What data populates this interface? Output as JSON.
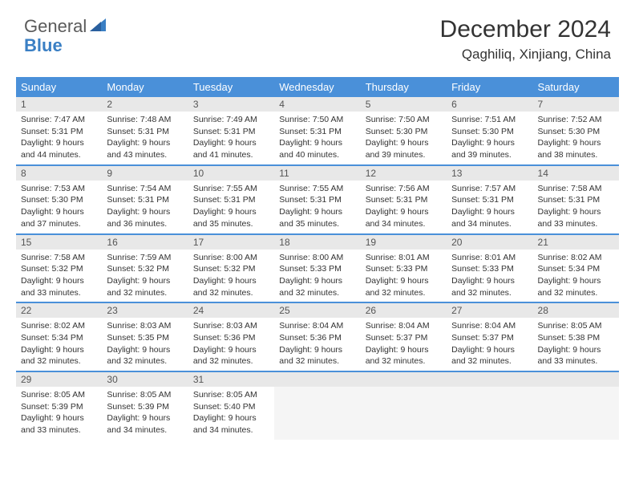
{
  "brand": {
    "word1": "General",
    "word2": "Blue"
  },
  "title": {
    "month_year": "December 2024",
    "location": "Qaghiliq, Xinjiang, China"
  },
  "colors": {
    "header_bg": "#4a90d9",
    "header_text": "#ffffff",
    "daynum_bg": "#e8e8e8",
    "row_border": "#4a90d9",
    "logo_gray": "#5a5a5a",
    "logo_blue": "#3a7fc4",
    "body_text": "#333333"
  },
  "day_labels": [
    "Sunday",
    "Monday",
    "Tuesday",
    "Wednesday",
    "Thursday",
    "Friday",
    "Saturday"
  ],
  "weeks": [
    [
      {
        "n": "1",
        "sr": "7:47 AM",
        "ss": "5:31 PM",
        "dl": "9 hours and 44 minutes."
      },
      {
        "n": "2",
        "sr": "7:48 AM",
        "ss": "5:31 PM",
        "dl": "9 hours and 43 minutes."
      },
      {
        "n": "3",
        "sr": "7:49 AM",
        "ss": "5:31 PM",
        "dl": "9 hours and 41 minutes."
      },
      {
        "n": "4",
        "sr": "7:50 AM",
        "ss": "5:31 PM",
        "dl": "9 hours and 40 minutes."
      },
      {
        "n": "5",
        "sr": "7:50 AM",
        "ss": "5:30 PM",
        "dl": "9 hours and 39 minutes."
      },
      {
        "n": "6",
        "sr": "7:51 AM",
        "ss": "5:30 PM",
        "dl": "9 hours and 39 minutes."
      },
      {
        "n": "7",
        "sr": "7:52 AM",
        "ss": "5:30 PM",
        "dl": "9 hours and 38 minutes."
      }
    ],
    [
      {
        "n": "8",
        "sr": "7:53 AM",
        "ss": "5:30 PM",
        "dl": "9 hours and 37 minutes."
      },
      {
        "n": "9",
        "sr": "7:54 AM",
        "ss": "5:31 PM",
        "dl": "9 hours and 36 minutes."
      },
      {
        "n": "10",
        "sr": "7:55 AM",
        "ss": "5:31 PM",
        "dl": "9 hours and 35 minutes."
      },
      {
        "n": "11",
        "sr": "7:55 AM",
        "ss": "5:31 PM",
        "dl": "9 hours and 35 minutes."
      },
      {
        "n": "12",
        "sr": "7:56 AM",
        "ss": "5:31 PM",
        "dl": "9 hours and 34 minutes."
      },
      {
        "n": "13",
        "sr": "7:57 AM",
        "ss": "5:31 PM",
        "dl": "9 hours and 34 minutes."
      },
      {
        "n": "14",
        "sr": "7:58 AM",
        "ss": "5:31 PM",
        "dl": "9 hours and 33 minutes."
      }
    ],
    [
      {
        "n": "15",
        "sr": "7:58 AM",
        "ss": "5:32 PM",
        "dl": "9 hours and 33 minutes."
      },
      {
        "n": "16",
        "sr": "7:59 AM",
        "ss": "5:32 PM",
        "dl": "9 hours and 32 minutes."
      },
      {
        "n": "17",
        "sr": "8:00 AM",
        "ss": "5:32 PM",
        "dl": "9 hours and 32 minutes."
      },
      {
        "n": "18",
        "sr": "8:00 AM",
        "ss": "5:33 PM",
        "dl": "9 hours and 32 minutes."
      },
      {
        "n": "19",
        "sr": "8:01 AM",
        "ss": "5:33 PM",
        "dl": "9 hours and 32 minutes."
      },
      {
        "n": "20",
        "sr": "8:01 AM",
        "ss": "5:33 PM",
        "dl": "9 hours and 32 minutes."
      },
      {
        "n": "21",
        "sr": "8:02 AM",
        "ss": "5:34 PM",
        "dl": "9 hours and 32 minutes."
      }
    ],
    [
      {
        "n": "22",
        "sr": "8:02 AM",
        "ss": "5:34 PM",
        "dl": "9 hours and 32 minutes."
      },
      {
        "n": "23",
        "sr": "8:03 AM",
        "ss": "5:35 PM",
        "dl": "9 hours and 32 minutes."
      },
      {
        "n": "24",
        "sr": "8:03 AM",
        "ss": "5:36 PM",
        "dl": "9 hours and 32 minutes."
      },
      {
        "n": "25",
        "sr": "8:04 AM",
        "ss": "5:36 PM",
        "dl": "9 hours and 32 minutes."
      },
      {
        "n": "26",
        "sr": "8:04 AM",
        "ss": "5:37 PM",
        "dl": "9 hours and 32 minutes."
      },
      {
        "n": "27",
        "sr": "8:04 AM",
        "ss": "5:37 PM",
        "dl": "9 hours and 32 minutes."
      },
      {
        "n": "28",
        "sr": "8:05 AM",
        "ss": "5:38 PM",
        "dl": "9 hours and 33 minutes."
      }
    ],
    [
      {
        "n": "29",
        "sr": "8:05 AM",
        "ss": "5:39 PM",
        "dl": "9 hours and 33 minutes."
      },
      {
        "n": "30",
        "sr": "8:05 AM",
        "ss": "5:39 PM",
        "dl": "9 hours and 34 minutes."
      },
      {
        "n": "31",
        "sr": "8:05 AM",
        "ss": "5:40 PM",
        "dl": "9 hours and 34 minutes."
      },
      null,
      null,
      null,
      null
    ]
  ],
  "labels": {
    "sunrise": "Sunrise:",
    "sunset": "Sunset:",
    "daylight": "Daylight:"
  }
}
